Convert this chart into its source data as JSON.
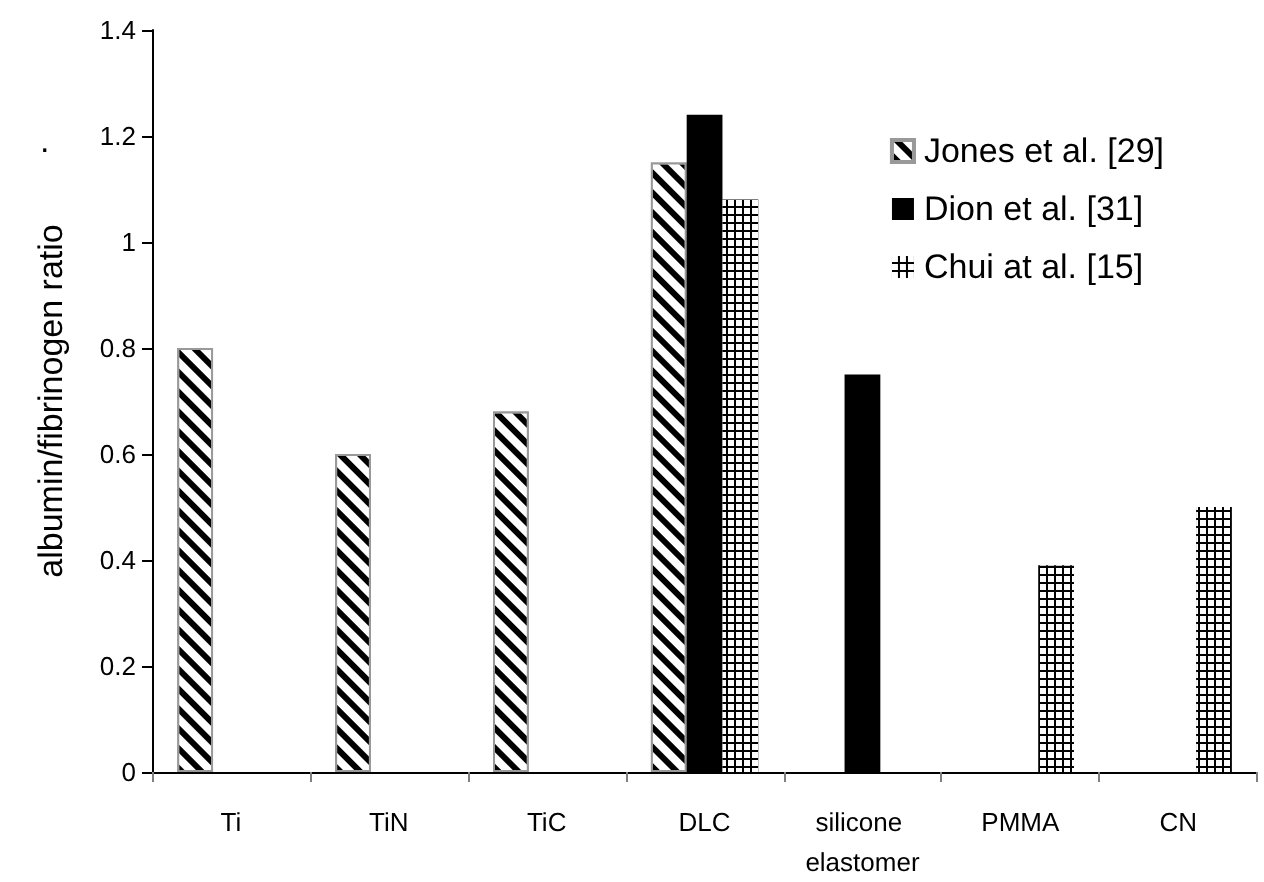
{
  "chart_data": {
    "type": "bar",
    "ylabel": "albumin/fibrinogen ratio",
    "annotations": [
      "."
    ],
    "categories": [
      "Ti",
      "TiN",
      "TiC",
      "DLC",
      "silicone elastomer",
      "PMMA",
      "CN"
    ],
    "series": [
      {
        "name": "Jones et al. [29]",
        "color": "#000000",
        "values": [
          0.8,
          0.6,
          0.68,
          1.15,
          null,
          null,
          null
        ]
      },
      {
        "name": "Dion et al. [31]",
        "color": "#000000",
        "values": [
          null,
          null,
          null,
          1.24,
          0.75,
          null,
          null
        ]
      },
      {
        "name": "Chui at al. [15]",
        "color": "#000000",
        "values": [
          null,
          null,
          null,
          1.08,
          null,
          0.39,
          0.5
        ]
      }
    ],
    "ylim": [
      0,
      1.4
    ],
    "yticks": [
      0,
      0.2,
      0.4,
      0.6,
      0.8,
      1,
      1.2,
      1.4
    ],
    "grid": false,
    "legend": "top right"
  }
}
